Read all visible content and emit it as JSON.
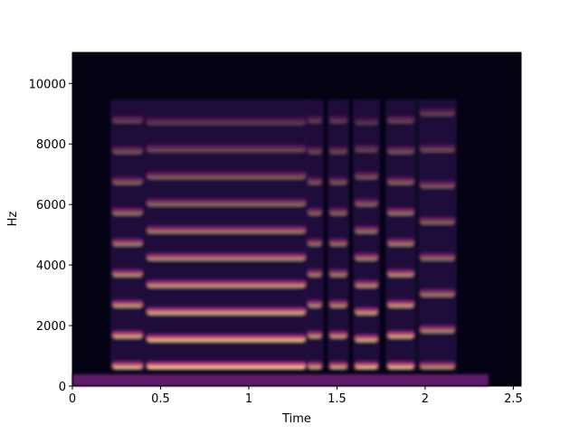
{
  "chart_data": {
    "type": "spectrogram",
    "x_label": "Time",
    "y_label": "Hz",
    "xlim": [
      0,
      2.544
    ],
    "ylim": [
      0,
      11025
    ],
    "xticks": [
      0,
      0.5,
      1,
      1.5,
      2,
      2.5
    ],
    "yticks": [
      0,
      2000,
      4000,
      6000,
      8000,
      10000
    ]
  }
}
